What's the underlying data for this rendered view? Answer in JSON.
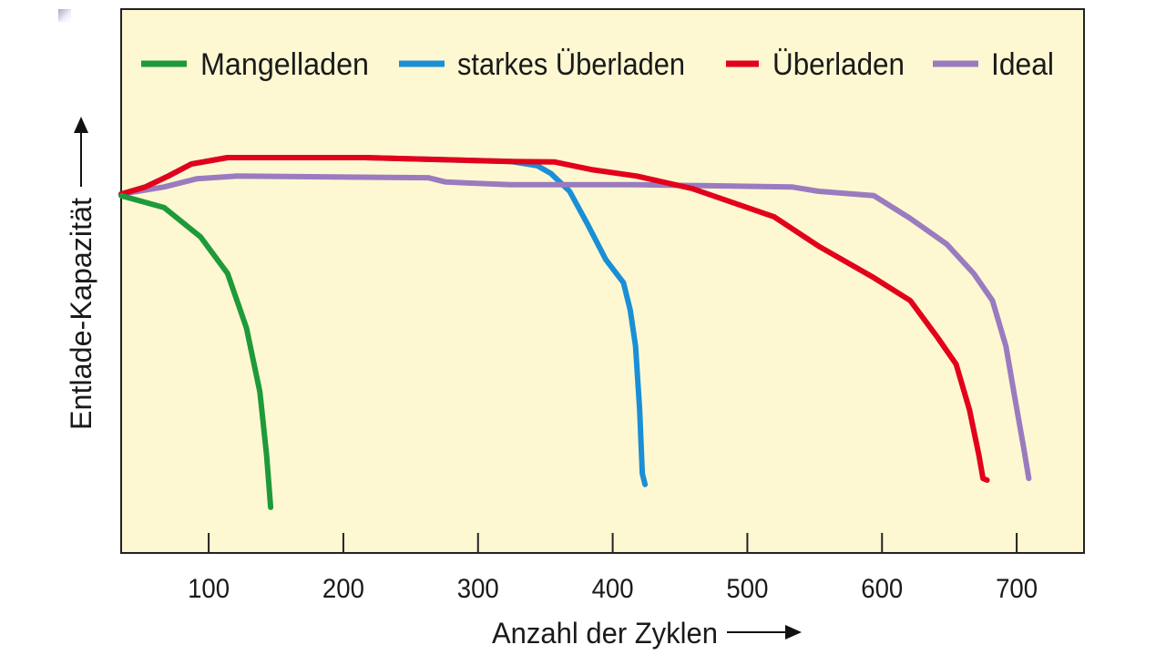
{
  "chart_data": {
    "type": "line",
    "title": "",
    "xlabel": "Anzahl der Zyklen",
    "ylabel": "Entlade-Kapazität",
    "xlim": [
      35,
      750
    ],
    "ylim": [
      0,
      100
    ],
    "xticks": [
      100,
      200,
      300,
      400,
      500,
      600,
      700
    ],
    "xtick_labels": [
      "100",
      "200",
      "300",
      "400",
      "500",
      "600",
      "700"
    ],
    "grid": false,
    "legend_position": "top",
    "background": "#fdf8d2",
    "series": [
      {
        "name": "Mangelladen",
        "color": "#1e9a3a",
        "x": [
          35,
          67,
          94,
          114,
          128,
          138,
          143,
          146
        ],
        "y": [
          65.7,
          63.5,
          58.1,
          51.4,
          41.4,
          29.6,
          17.9,
          8.4
        ]
      },
      {
        "name": "starkes Überladen",
        "color": "#1a8fd6",
        "x": [
          35,
          53,
          70,
          87,
          114,
          216,
          324,
          344,
          354,
          368,
          381,
          395,
          408,
          413,
          417,
          420,
          422,
          424
        ],
        "y": [
          66.0,
          67.3,
          69.3,
          71.5,
          72.7,
          72.7,
          72.0,
          71.2,
          69.8,
          66.5,
          60.6,
          53.9,
          49.7,
          44.7,
          38.0,
          26.3,
          14.6,
          12.6
        ]
      },
      {
        "name": "Überladen",
        "color": "#e3001b",
        "x": [
          35,
          53,
          70,
          87,
          114,
          216,
          324,
          357,
          384,
          418,
          459,
          520,
          553,
          594,
          621,
          641,
          655,
          665,
          672,
          675,
          678
        ],
        "y": [
          66.0,
          67.3,
          69.3,
          71.5,
          72.7,
          72.7,
          72.0,
          71.9,
          70.5,
          69.3,
          67.0,
          61.8,
          56.4,
          50.6,
          46.4,
          39.7,
          34.7,
          26.3,
          17.9,
          13.7,
          13.4
        ]
      },
      {
        "name": "Ideal",
        "color": "#9b7bbf",
        "x": [
          35,
          67,
          91,
          121,
          263,
          276,
          324,
          418,
          533,
          553,
          594,
          621,
          648,
          668,
          682,
          692,
          699,
          705,
          709
        ],
        "y": [
          66.0,
          67.3,
          68.8,
          69.3,
          69.0,
          68.2,
          67.7,
          67.7,
          67.3,
          66.5,
          65.7,
          61.5,
          56.8,
          51.4,
          46.4,
          38.0,
          28.0,
          19.6,
          13.7
        ]
      }
    ]
  }
}
